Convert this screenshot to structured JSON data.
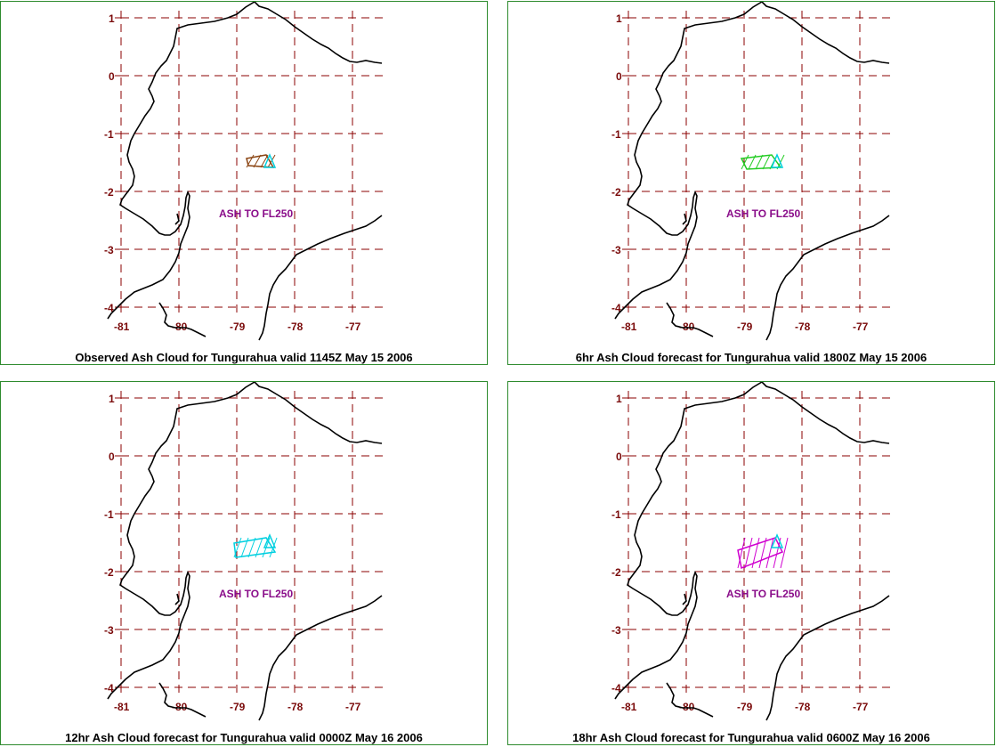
{
  "map": {
    "lon_ticks": [
      "-81",
      "-80",
      "-79",
      "-78",
      "-77"
    ],
    "lat_ticks": [
      "1",
      "0",
      "-1",
      "-2",
      "-3",
      "-4"
    ],
    "lon_range": [
      -81.2,
      -76.5
    ],
    "lat_range": [
      -4.4,
      1.3
    ],
    "grid_color": "#8b0000",
    "coast_color": "#000000"
  },
  "panels": [
    {
      "caption": "Observed Ash Cloud for Tungurahua valid 1145Z May 15 2006",
      "ash_label": "ASH TO FL250",
      "cloud_colors": [
        "#8b4513",
        "#00d0e0"
      ]
    },
    {
      "caption": "6hr Ash Cloud forecast for Tungurahua valid 1800Z May 15 2006",
      "ash_label": "ASH TO FL250",
      "cloud_colors": [
        "#22cc22",
        "#00d0e0"
      ]
    },
    {
      "caption": "12hr Ash Cloud forecast for Tungurahua valid 0000Z May 16 2006",
      "ash_label": "ASH TO FL250",
      "cloud_colors": [
        "#00d0e0",
        "#00d0e0"
      ]
    },
    {
      "caption": "18hr Ash Cloud forecast for Tungurahua valid 0600Z May 16 2006",
      "ash_label": "ASH TO FL250",
      "cloud_colors": [
        "#d000d0",
        "#00d0e0"
      ]
    }
  ]
}
